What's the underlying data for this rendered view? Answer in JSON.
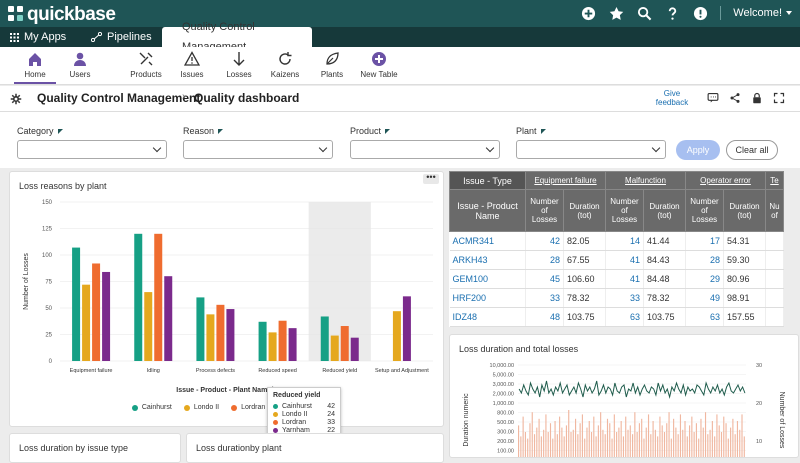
{
  "app": {
    "brand": "quickbase",
    "welcome": "Welcome!"
  },
  "tabs": {
    "my_apps": "My Apps",
    "pipelines": "Pipelines",
    "active": "Quality Control Management"
  },
  "toolbar": {
    "home": "Home",
    "users": "Users",
    "products": "Products",
    "issues": "Issues",
    "losses": "Losses",
    "kaizens": "Kaizens",
    "plants": "Plants",
    "new_table": "New Table"
  },
  "breadcrumb": {
    "app": "Quality Control Management",
    "page": "Quality dashboard",
    "give_feedback": "Give feedback"
  },
  "filters": {
    "category": "Category",
    "reason": "Reason",
    "product": "Product",
    "plant": "Plant",
    "apply": "Apply",
    "clear_all": "Clear all"
  },
  "chart1": {
    "title": "Loss reasons by plant",
    "dots": "•••"
  },
  "tooltip": {
    "title": "Reduced yield",
    "rows": [
      {
        "name": "Cainhurst",
        "value": "42"
      },
      {
        "name": "Londo II",
        "value": "24"
      },
      {
        "name": "Lordran",
        "value": "33"
      },
      {
        "name": "Yarnham",
        "value": "22"
      }
    ]
  },
  "chart_data": [
    {
      "type": "bar",
      "title": "Loss reasons by plant",
      "xlabel": "Issue - Product - Plant Name/Loss Reason",
      "ylabel": "Number of Losses",
      "ylim": [
        0,
        150
      ],
      "yticks": [
        "0",
        "25",
        "50",
        "75",
        "100",
        "125",
        "150"
      ],
      "categories": [
        "Equipment failure",
        "Idling",
        "Process defects",
        "Reduced speed",
        "Reduced yield",
        "Setup and Adjustment"
      ],
      "series": [
        {
          "name": "Cainhurst",
          "color": "#16a085",
          "values": [
            107,
            120,
            60,
            37,
            42,
            0
          ]
        },
        {
          "name": "Londo II",
          "color": "#e5a81e",
          "values": [
            72,
            65,
            44,
            27,
            24,
            47
          ]
        },
        {
          "name": "Lordran",
          "color": "#ef6c2f",
          "values": [
            92,
            120,
            53,
            38,
            33,
            0
          ]
        },
        {
          "name": "Yarnham",
          "color": "#7b2a8c",
          "values": [
            84,
            80,
            49,
            31,
            22,
            61
          ]
        }
      ],
      "legend": "bottom",
      "grid": true
    },
    {
      "type": "line",
      "title": "Loss duration and total losses",
      "ylabel": "Duration numeric",
      "y2label": "Number of Losses",
      "yticks": [
        "10,000.00",
        "5,000.00",
        "3,000.00",
        "2,000.00",
        "1,000.00",
        "800.00",
        "500.00",
        "300.00",
        "200.00",
        "100.00"
      ],
      "y2ticks": [
        "30",
        "20",
        "10"
      ],
      "y2lim": [
        0,
        30
      ],
      "line_values": [
        22,
        20,
        24,
        21,
        19,
        25,
        22,
        20,
        23,
        18,
        24,
        21,
        26,
        20,
        22,
        19,
        23,
        21,
        25,
        20,
        22,
        24,
        19,
        21,
        23,
        20,
        25,
        22,
        18,
        24,
        21,
        23,
        20,
        22,
        26,
        19,
        21,
        24,
        20,
        23,
        22,
        19,
        25,
        21,
        20,
        23,
        24,
        18,
        22,
        21,
        25,
        20,
        23,
        19,
        22,
        24,
        21,
        20,
        23,
        22,
        19,
        25,
        21,
        24,
        20,
        22,
        18,
        23,
        21,
        25,
        22,
        20,
        24,
        19,
        23,
        21,
        22,
        20,
        24,
        23,
        21,
        19,
        25,
        22,
        20,
        23,
        21,
        24,
        20,
        22,
        19,
        23,
        25,
        21,
        20,
        22,
        24,
        21,
        23,
        20
      ],
      "bar_values": [
        8,
        3,
        12,
        5,
        2,
        9,
        14,
        4,
        7,
        11,
        3,
        6,
        13,
        5,
        9,
        2,
        10,
        4,
        12,
        7,
        3,
        8,
        15,
        5,
        6,
        11,
        4,
        9,
        13,
        2,
        7,
        10,
        5,
        12,
        3,
        8,
        14,
        6,
        4,
        11,
        9,
        2,
        13,
        5,
        7,
        10,
        3,
        12,
        6,
        8,
        4,
        14,
        5,
        9,
        11,
        2,
        7,
        13,
        4,
        10,
        6,
        3,
        12,
        8,
        5,
        9,
        14,
        2,
        11,
        7,
        4,
        13,
        6,
        10,
        3,
        8,
        12,
        5,
        9,
        2,
        11,
        7,
        14,
        4,
        6,
        10,
        3,
        13,
        8,
        5,
        12,
        9,
        2,
        7,
        11,
        4,
        10,
        6,
        13,
        3
      ],
      "line_color": "#1f5c4c",
      "bar_color": "#f0b7a0"
    }
  ],
  "table": {
    "group_label": "Issue - Type",
    "row_label": "Issue - Product Name",
    "groups": [
      "Equipment failure",
      "Malfunction",
      "Operator error",
      "Te"
    ],
    "subcols": [
      "Number of Losses",
      "Duration (tot)",
      "Number of Losses",
      "Duration (tot)",
      "Number of Losses",
      "Duration (tot)",
      "Nu of"
    ],
    "rows": [
      {
        "name": "ACMR341",
        "cells": [
          "42",
          "82.05",
          "14",
          "41.44",
          "17",
          "54.31"
        ]
      },
      {
        "name": "ARKH43",
        "cells": [
          "28",
          "67.55",
          "41",
          "84.43",
          "28",
          "59.30"
        ]
      },
      {
        "name": "GEM100",
        "cells": [
          "45",
          "106.60",
          "41",
          "84.48",
          "29",
          "80.96"
        ]
      },
      {
        "name": "HRF200",
        "cells": [
          "33",
          "78.32",
          "33",
          "78.32",
          "49",
          "98.91"
        ]
      },
      {
        "name": "IDZ48",
        "cells": [
          "48",
          "103.75",
          "63",
          "103.75",
          "63",
          "157.55"
        ]
      }
    ]
  },
  "bottom_cards": {
    "issue_type": "Loss duration by issue type",
    "plant": "Loss durationby plant"
  }
}
